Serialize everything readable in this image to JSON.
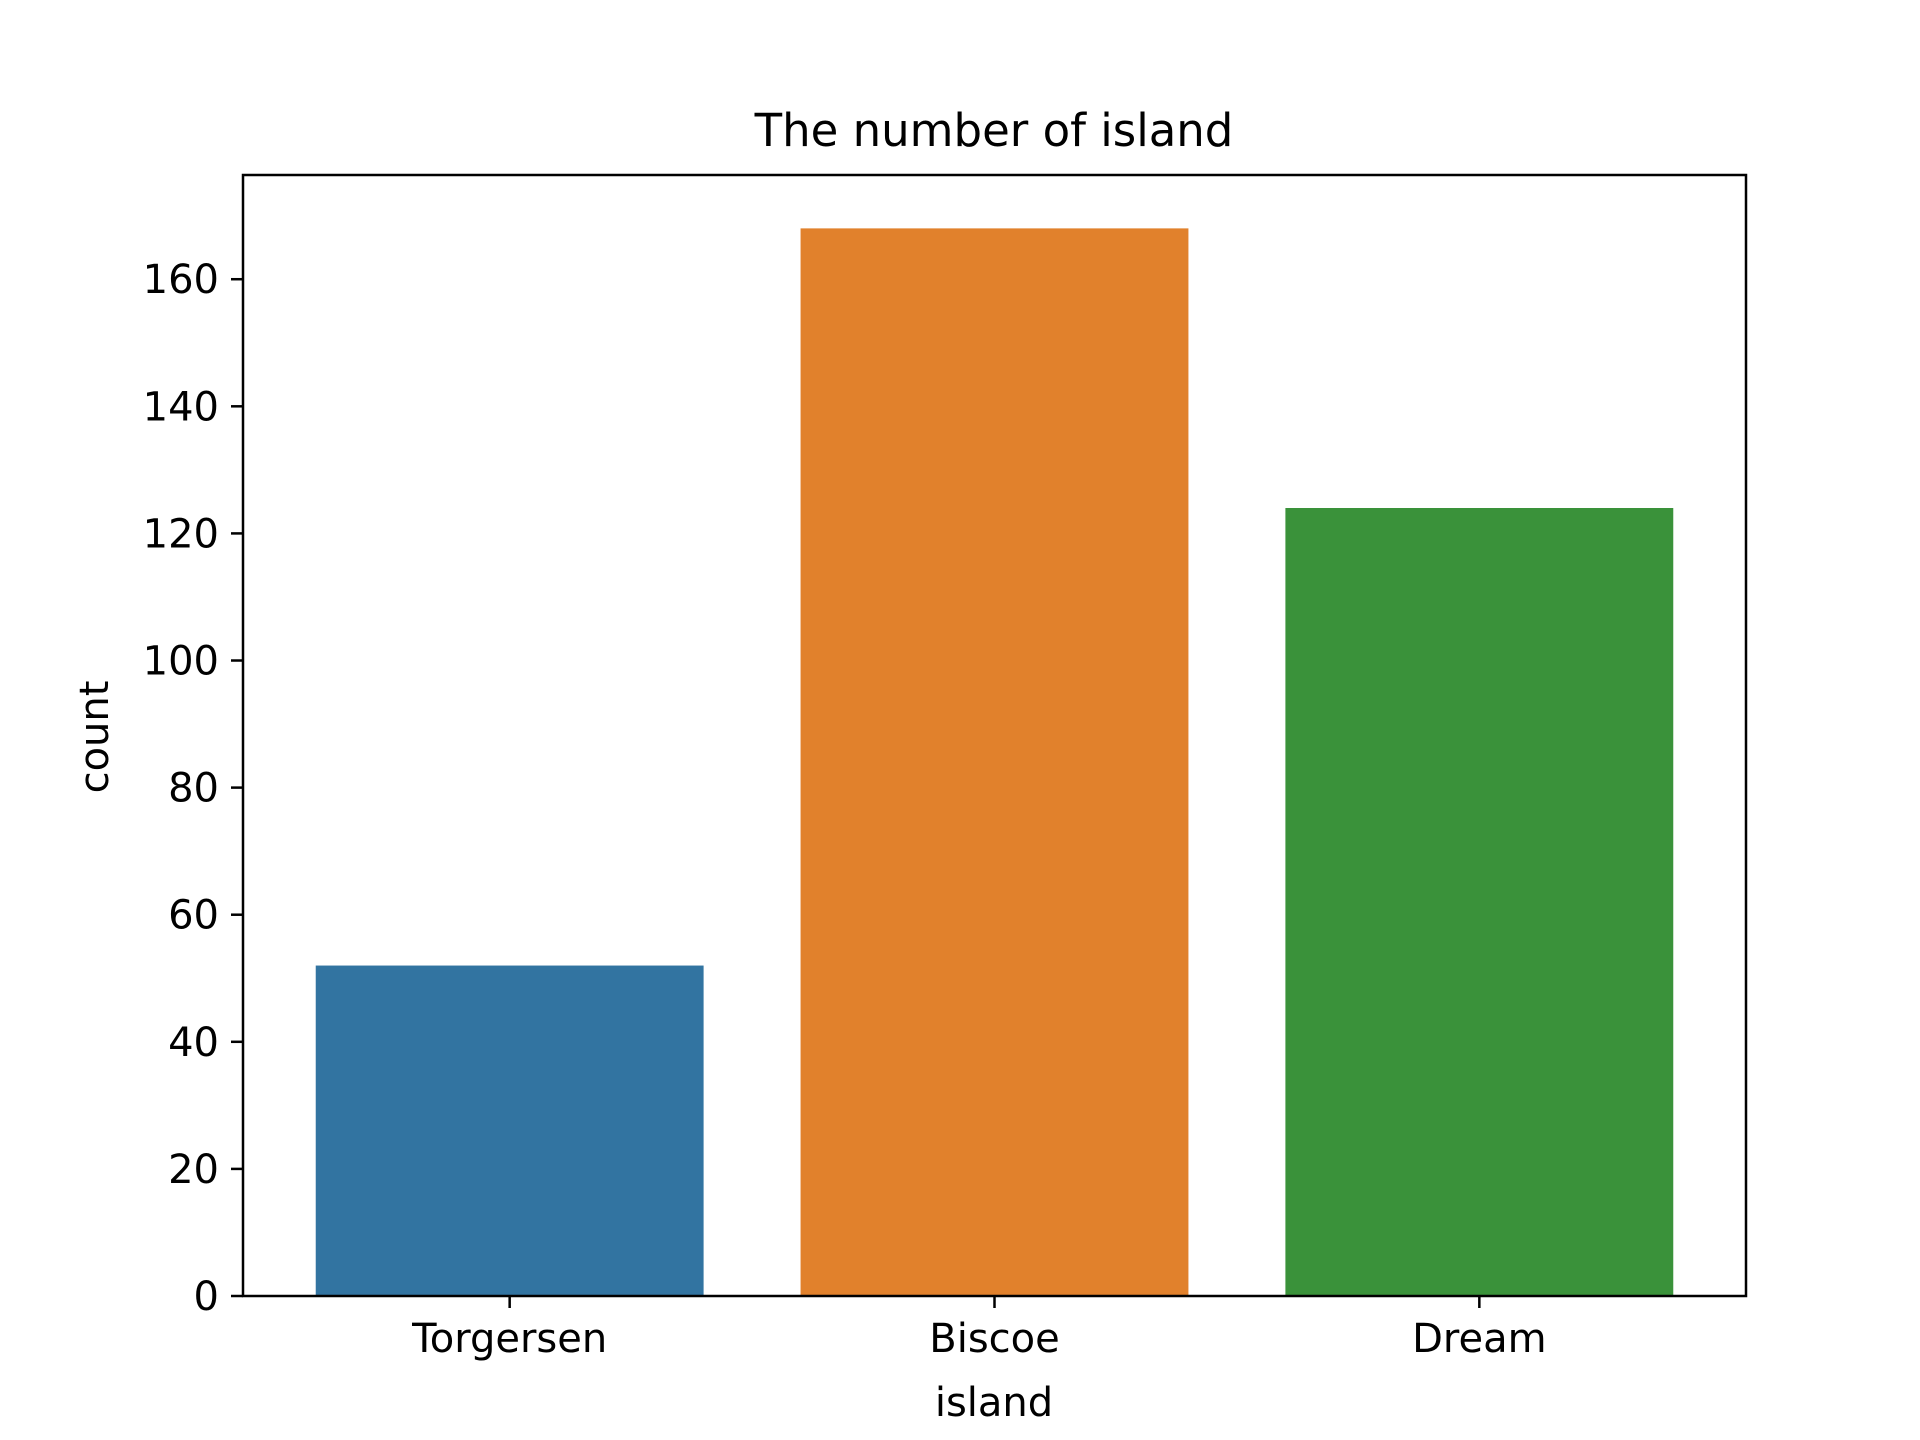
{
  "chart_data": {
    "type": "bar",
    "title": "The number of island",
    "xlabel": "island",
    "ylabel": "count",
    "categories": [
      "Torgersen",
      "Biscoe",
      "Dream"
    ],
    "values": [
      52,
      168,
      124
    ],
    "colors": [
      "#3274a1",
      "#e1812c",
      "#3a923a"
    ],
    "ylim": [
      0,
      176.4
    ],
    "yticks": [
      0,
      20,
      40,
      60,
      80,
      100,
      120,
      140,
      160
    ],
    "ytick_labels": [
      "0",
      "20",
      "40",
      "60",
      "80",
      "100",
      "120",
      "140",
      "160"
    ],
    "grid": false,
    "legend": "none"
  }
}
